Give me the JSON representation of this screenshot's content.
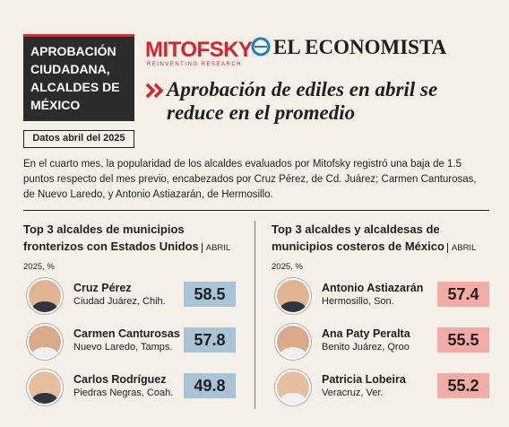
{
  "header": {
    "title": "APROBACIÓN CIUDADANA, ALCALDES DE MÉXICO",
    "date_label": "Datos abril del 2025",
    "logo_mitofsky": "MITOFSKY",
    "logo_tagline": "REINVENTING RESEARCH",
    "logo_economista": "EL ECONOMISTA",
    "headline": "Aprobación de ediles en abril se reduce en el promedio"
  },
  "intro": "En el cuarto mes, la popularidad de los alcaldes evaluados por Mitofsky registró una baja de 1.5 puntos respecto del mes previo, encabezados por Cruz Pérez, de Cd. Juárez; Carmen Canturosas, de Nuevo Laredo, y Antonio Astiazarán, de Hermosillo.",
  "left": {
    "title": "Top 3 alcaldes de municipios fronterizos con Estados Unidos",
    "note": "ABRIL 2025, %",
    "items": [
      {
        "name": "Cruz Pérez",
        "place": "Ciudad Juárez, Chih.",
        "value": 58.5
      },
      {
        "name": "Carmen Canturosas",
        "place": "Nuevo Laredo, Tamps.",
        "value": 57.8
      },
      {
        "name": "Carlos Rodríguez",
        "place": "Piedras Negras, Coah.",
        "value": 49.8
      }
    ]
  },
  "right": {
    "title": "Top 3 alcaldes y alcaldesas de municipios costeros de México",
    "note": "ABRIL 2025, %",
    "items": [
      {
        "name": "Antonio Astiazarán",
        "place": "Hermosillo, Son.",
        "value": 57.4
      },
      {
        "name": "Ana Paty Peralta",
        "place": "Benito Juárez, Qroo",
        "value": 55.5
      },
      {
        "name": "Patricia Lobeira",
        "place": "Veracruz, Ver.",
        "value": 55.2
      }
    ]
  }
}
